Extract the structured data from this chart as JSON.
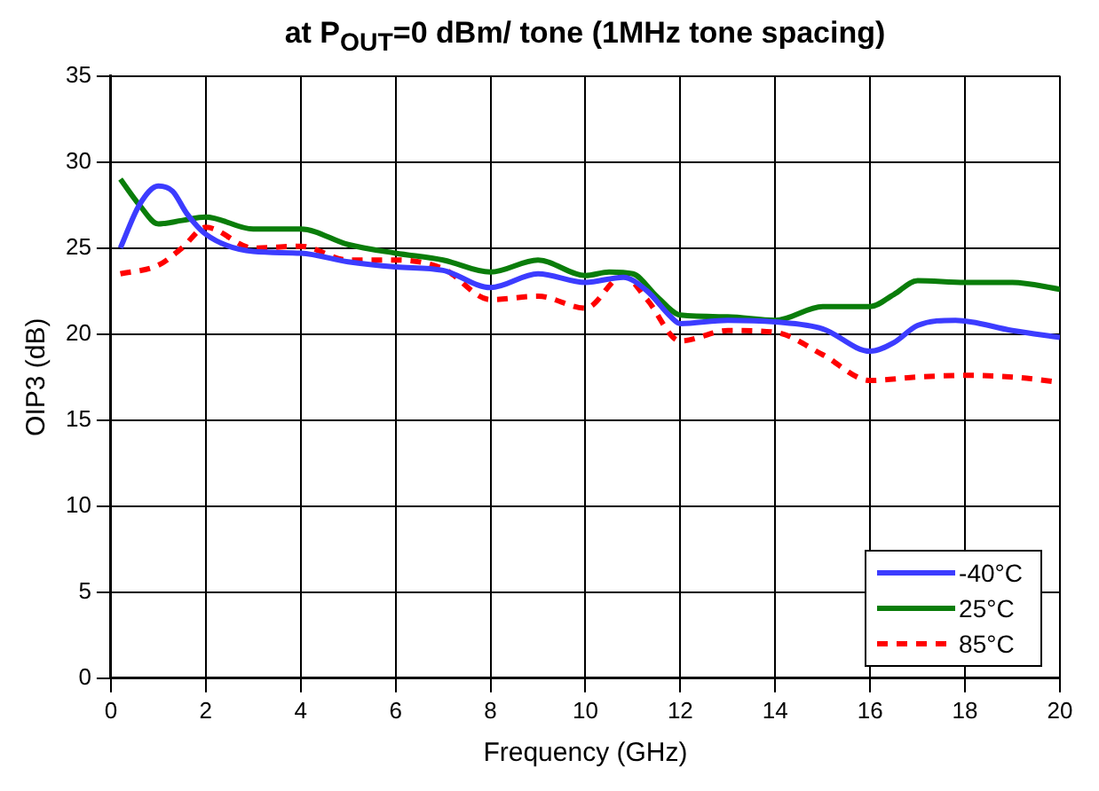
{
  "chart_data": {
    "type": "line",
    "title": "at P$_{OUT}$=0 dBm/ tone (1MHz tone spacing)",
    "xlabel": "Frequency (GHz)",
    "ylabel": "OIP3 (dB)",
    "xlim": [
      0,
      20
    ],
    "xticks": [
      0,
      2,
      4,
      6,
      8,
      10,
      12,
      14,
      16,
      18,
      20
    ],
    "ylim": [
      0,
      35
    ],
    "yticks": [
      0,
      5,
      10,
      15,
      20,
      25,
      30,
      35
    ],
    "grid": true,
    "legend": "bottom right",
    "marker": "none",
    "series": [
      {
        "name": "-40°C",
        "color": "#3c3cff",
        "line_style": "solid",
        "x": [
          0.2,
          0.6,
          1,
          1.3,
          1.6,
          2,
          3,
          4,
          5,
          6,
          7,
          8,
          9,
          10,
          10.8,
          11.3,
          11.8,
          12,
          13,
          14,
          15,
          16,
          16.5,
          17,
          17.8,
          19,
          20
        ],
        "values": [
          25,
          27.5,
          28.6,
          28.3,
          27,
          25.8,
          24.8,
          24.7,
          24.2,
          23.9,
          23.7,
          22.7,
          23.5,
          23,
          23.3,
          22.5,
          21,
          20.6,
          20.8,
          20.7,
          20.3,
          19,
          19.5,
          20.5,
          20.8,
          20.2,
          19.8
        ]
      },
      {
        "name": "25°C",
        "color": "#0a7d0a",
        "line_style": "solid",
        "x": [
          0.2,
          0.6,
          1,
          1.5,
          2,
          3,
          4,
          5,
          6,
          7,
          8,
          9,
          10,
          10.5,
          11,
          11.5,
          12,
          13,
          14,
          15,
          16,
          16.5,
          17,
          18,
          19,
          20
        ],
        "values": [
          29,
          27.5,
          26.4,
          26.6,
          26.8,
          26.1,
          26.1,
          25.2,
          24.7,
          24.3,
          23.6,
          24.3,
          23.4,
          23.6,
          23.5,
          22.2,
          21.1,
          21,
          20.8,
          21.6,
          21.6,
          22.3,
          23.1,
          23,
          23,
          22.6
        ]
      },
      {
        "name": "85°C",
        "color": "#ff0000",
        "line_style": "dashed",
        "x": [
          0.2,
          1,
          1.5,
          2,
          3,
          4,
          5,
          6,
          7,
          8,
          9,
          10,
          10.8,
          11.3,
          12,
          13,
          14,
          15,
          16,
          17,
          18,
          19,
          20
        ],
        "values": [
          23.5,
          24,
          25,
          26.2,
          25,
          25.1,
          24.3,
          24.3,
          23.8,
          22,
          22.2,
          21.5,
          23.4,
          22,
          19.6,
          20.2,
          20.1,
          18.8,
          17.3,
          17.5,
          17.6,
          17.5,
          17.2
        ]
      }
    ]
  }
}
